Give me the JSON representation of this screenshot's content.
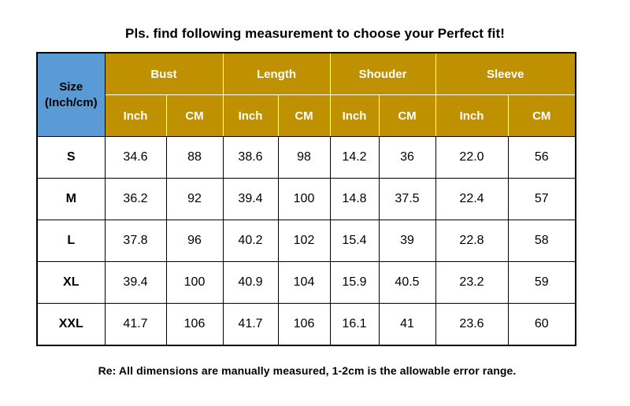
{
  "title": "Pls. find following measurement to choose your Perfect fit!",
  "header": {
    "size_line1": "Size",
    "size_line2": "(Inch/cm)",
    "groups": [
      "Bust",
      "Length",
      "Shouder",
      "Sleeve"
    ],
    "units": [
      "Inch",
      "CM",
      "Inch",
      "CM",
      "Inch",
      "CM",
      "Inch",
      "CM"
    ]
  },
  "rows": [
    {
      "size": "S",
      "values": [
        "34.6",
        "88",
        "38.6",
        "98",
        "14.2",
        "36",
        "22.0",
        "56"
      ]
    },
    {
      "size": "M",
      "values": [
        "36.2",
        "92",
        "39.4",
        "100",
        "14.8",
        "37.5",
        "22.4",
        "57"
      ]
    },
    {
      "size": "L",
      "values": [
        "37.8",
        "96",
        "40.2",
        "102",
        "15.4",
        "39",
        "22.8",
        "58"
      ]
    },
    {
      "size": "XL",
      "values": [
        "39.4",
        "100",
        "40.9",
        "104",
        "15.9",
        "40.5",
        "23.2",
        "59"
      ]
    },
    {
      "size": "XXL",
      "values": [
        "41.7",
        "106",
        "41.7",
        "106",
        "16.1",
        "41",
        "23.6",
        "60"
      ]
    }
  ],
  "note": "Re: All dimensions are manually measured, 1-2cm is the allowable error range.",
  "colors": {
    "header_gold": "#bf9000",
    "size_header_blue": "#5b9bd5",
    "header_text": "#ffffff"
  }
}
